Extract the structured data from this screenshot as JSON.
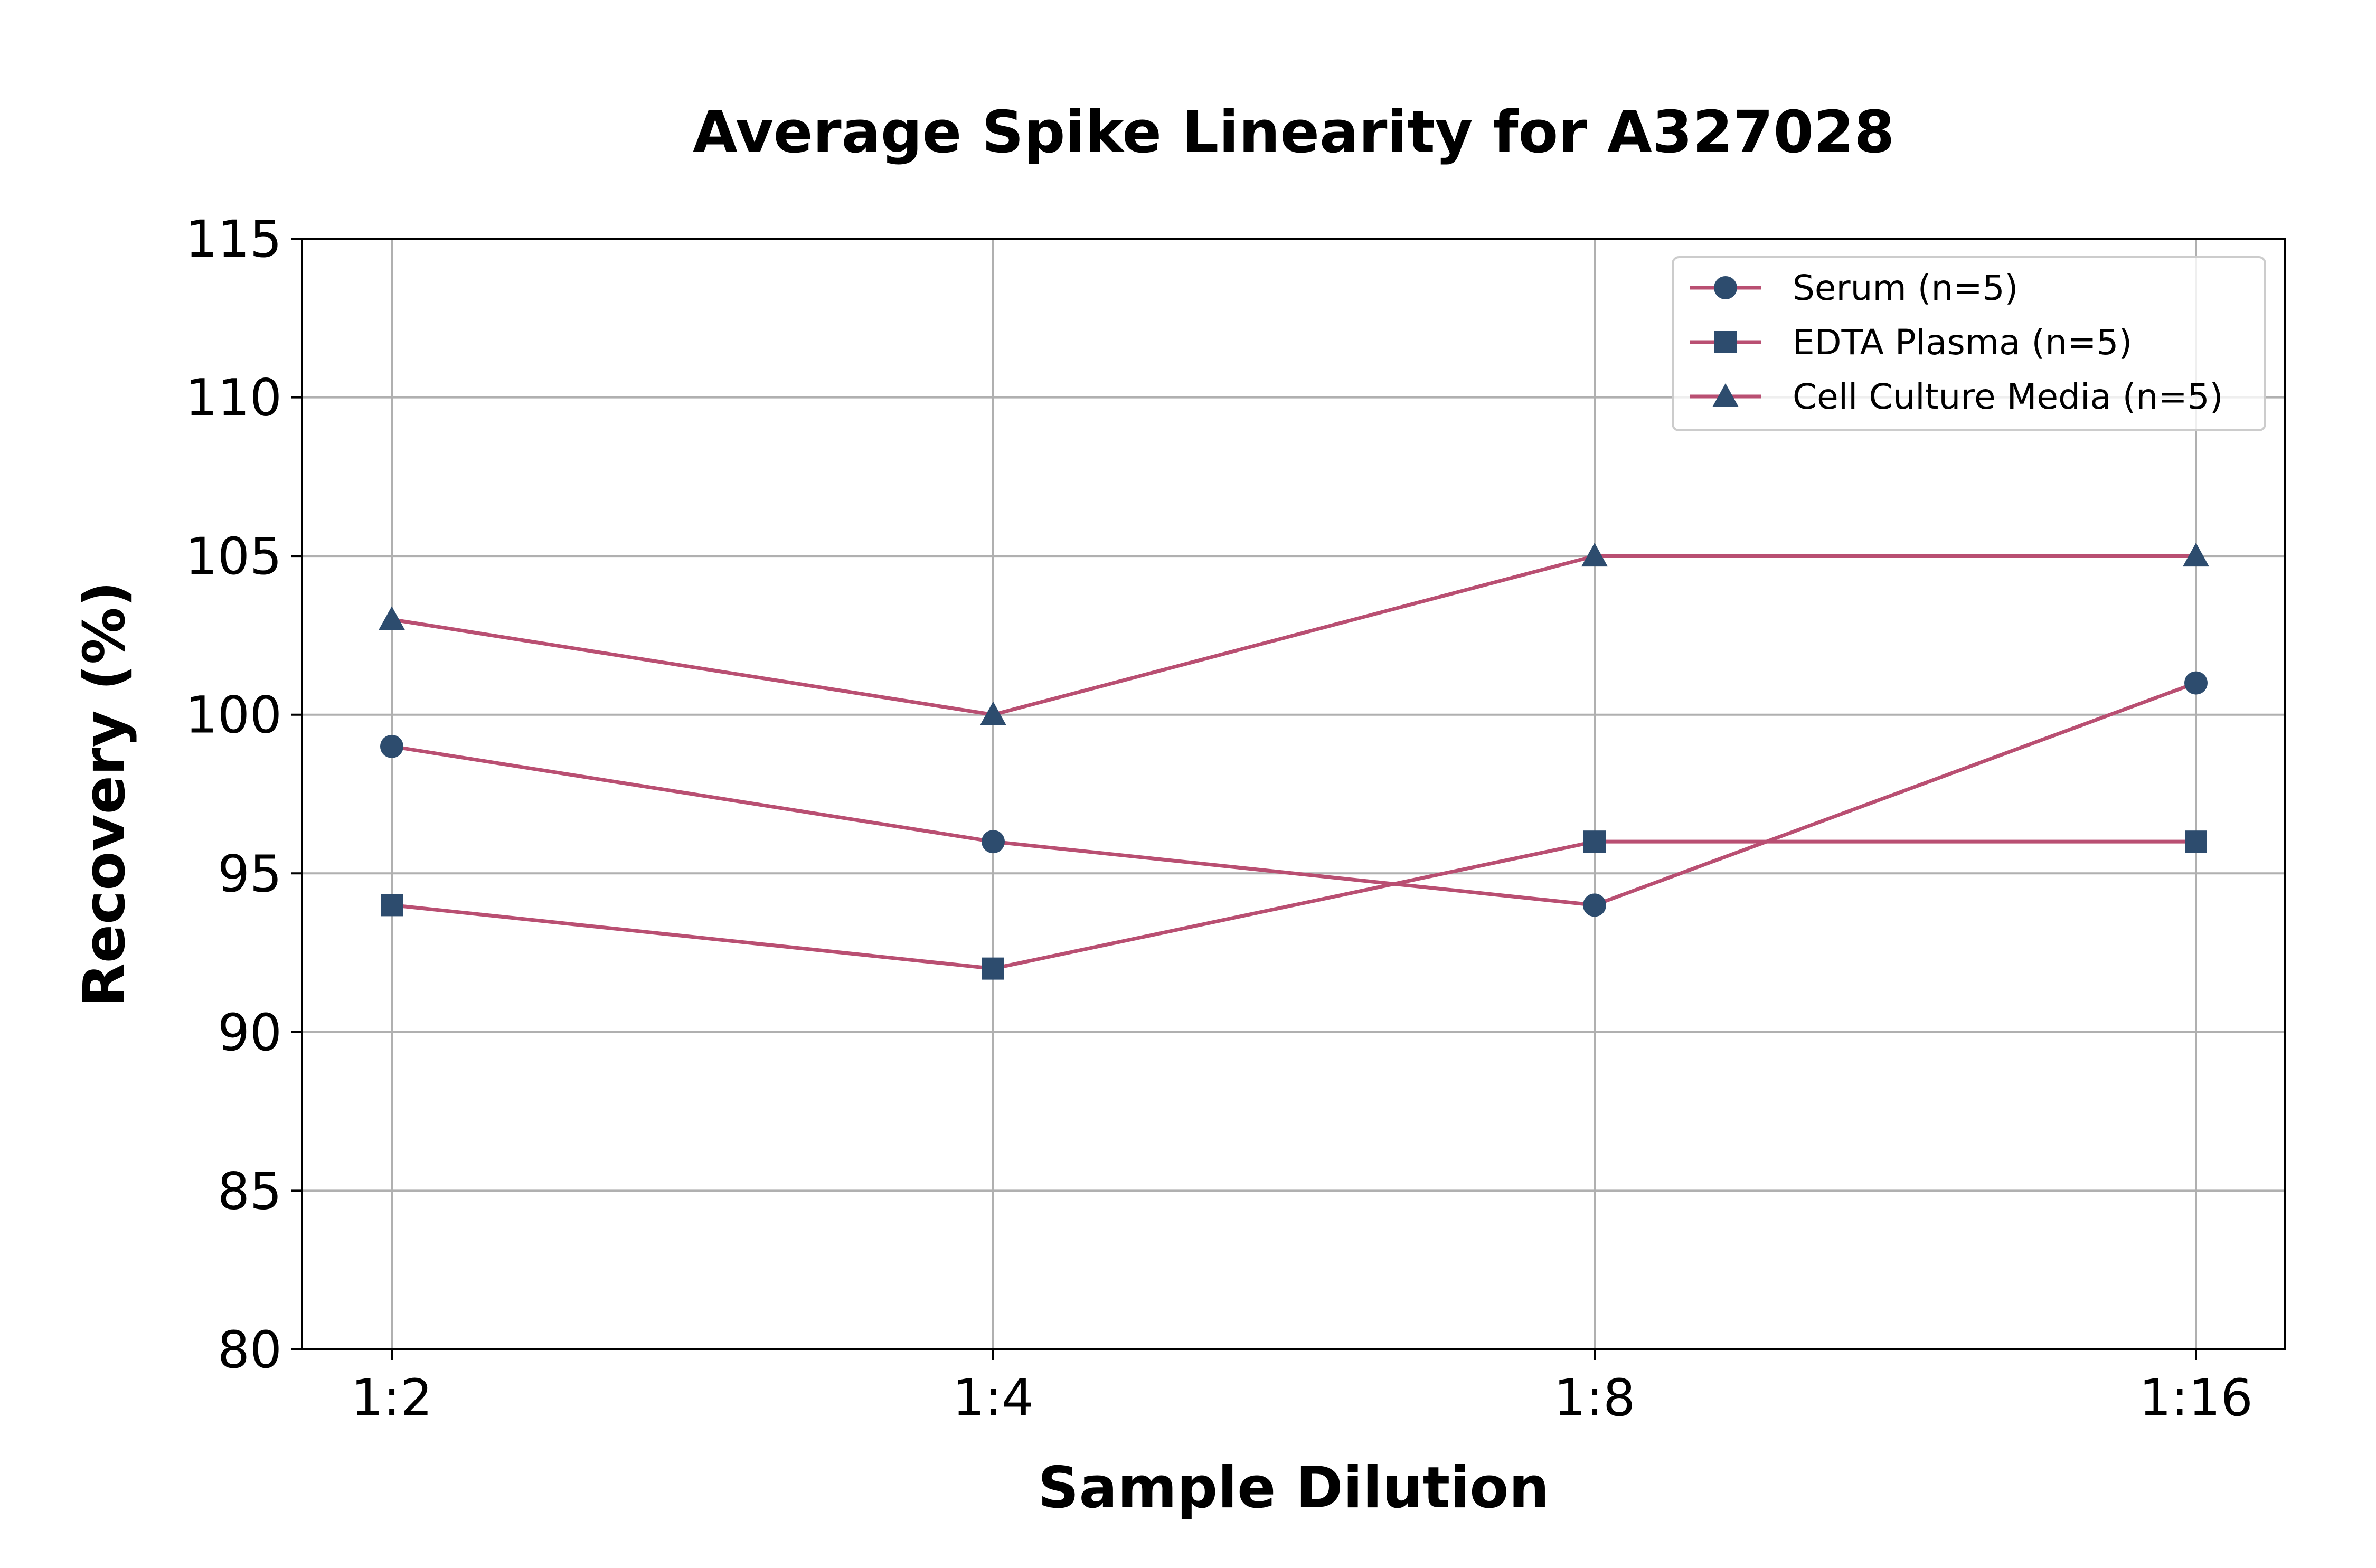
{
  "chart_data": {
    "type": "line",
    "title": "Average Spike Linearity for A327028",
    "xlabel": "Sample Dilution",
    "ylabel": "Recovery (%)",
    "categories": [
      "1:2",
      "1:4",
      "1:8",
      "1:16"
    ],
    "ylim": [
      80,
      115
    ],
    "yticks": [
      80,
      85,
      90,
      95,
      100,
      105,
      110,
      115
    ],
    "grid": true,
    "legend_position": "top-right",
    "line_color": "#b94f72",
    "marker_color": "#2d4c6e",
    "series": [
      {
        "name": "Serum (n=5)",
        "marker": "circle",
        "values": [
          99,
          96,
          94,
          101
        ]
      },
      {
        "name": "EDTA Plasma (n=5)",
        "marker": "square",
        "values": [
          94,
          92,
          96,
          96
        ]
      },
      {
        "name": "Cell Culture Media (n=5)",
        "marker": "triangle",
        "values": [
          103,
          100,
          105,
          105
        ]
      }
    ]
  }
}
